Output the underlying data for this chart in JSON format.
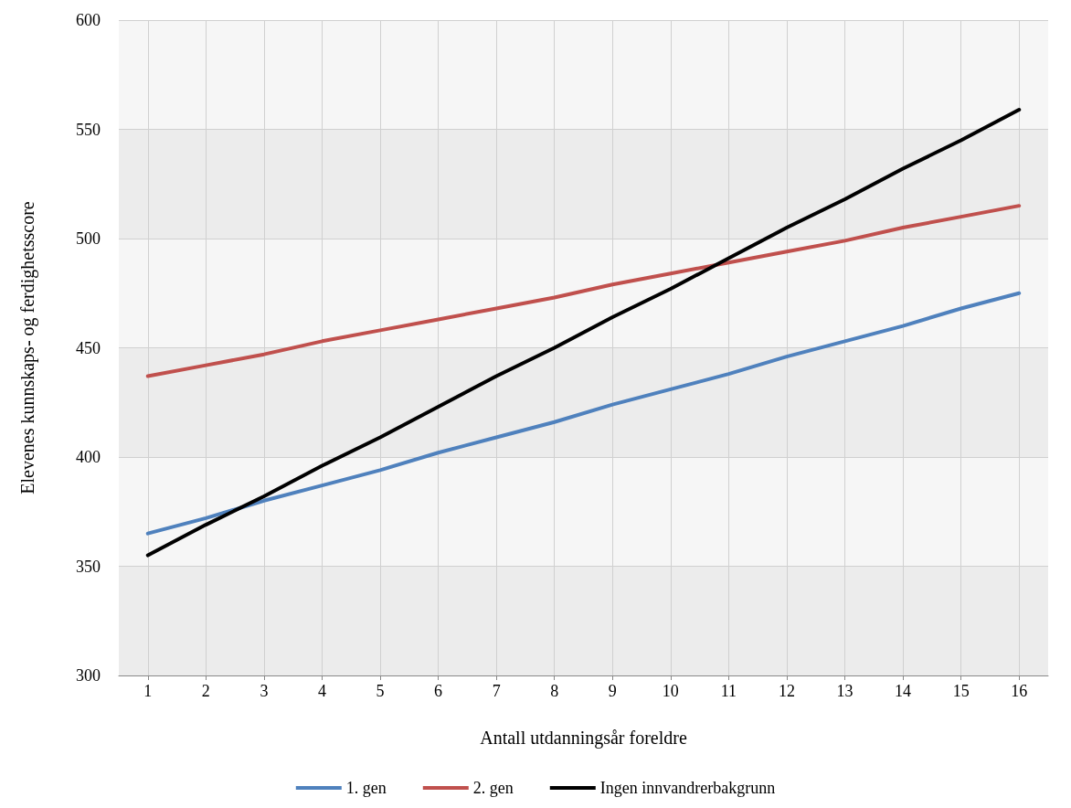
{
  "chart_data": {
    "type": "line",
    "xlabel": "Antall utdanningsår foreldre",
    "ylabel": "Elevenes kunnskaps- og ferdighetsscore",
    "x": [
      1,
      2,
      3,
      4,
      5,
      6,
      7,
      8,
      9,
      10,
      11,
      12,
      13,
      14,
      15,
      16
    ],
    "xlim": [
      0.5,
      16.5
    ],
    "xticks": [
      1,
      2,
      3,
      4,
      5,
      6,
      7,
      8,
      9,
      10,
      11,
      12,
      13,
      14,
      15,
      16
    ],
    "ylim": [
      300,
      600
    ],
    "yticks": [
      300,
      350,
      400,
      450,
      500,
      550,
      600
    ],
    "series": [
      {
        "name": "1. gen",
        "color": "#4f81bd",
        "values": [
          365,
          372,
          380,
          387,
          394,
          402,
          409,
          416,
          424,
          431,
          438,
          446,
          453,
          460,
          468,
          475
        ]
      },
      {
        "name": "2. gen",
        "color": "#c0504d",
        "values": [
          437,
          442,
          447,
          453,
          458,
          463,
          468,
          473,
          479,
          484,
          489,
          494,
          499,
          505,
          510,
          515
        ]
      },
      {
        "name": "Ingen innvandrerbakgrunn",
        "color": "#000000",
        "values": [
          355,
          369,
          382,
          396,
          409,
          423,
          437,
          450,
          464,
          477,
          491,
          505,
          518,
          532,
          545,
          559
        ]
      }
    ],
    "grid": true,
    "legend": "bottom",
    "marker": "none",
    "line_style": "solid"
  }
}
